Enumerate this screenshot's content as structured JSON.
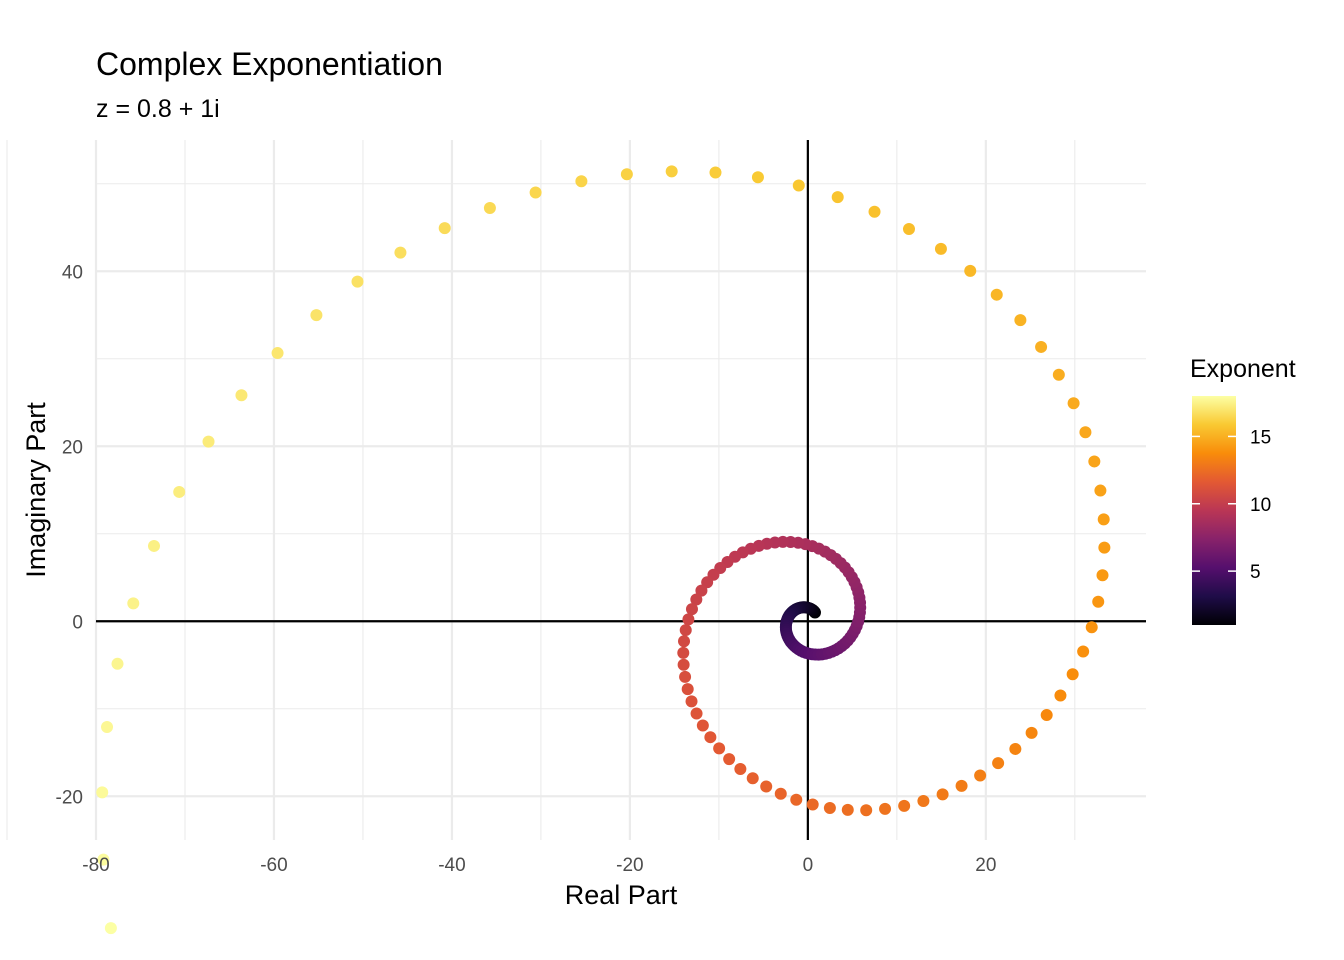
{
  "chart_data": {
    "type": "scatter",
    "title": "Complex Exponentiation",
    "subtitle": "z = 0.8 + 1i",
    "xlabel": "Real Part",
    "ylabel": "Imaginary Part",
    "xlim": [
      -80,
      38
    ],
    "ylim": [
      -25,
      55
    ],
    "x_ticks": [
      -80,
      -60,
      -40,
      -20,
      0,
      20
    ],
    "x_tick_labels": [
      "-80",
      "-60",
      "-40",
      "-20",
      "0",
      "20"
    ],
    "y_ticks": [
      -20,
      0,
      20,
      40
    ],
    "y_tick_labels": [
      "-20",
      "0",
      "20",
      "40"
    ],
    "grid": true,
    "reference_lines": {
      "x": 0,
      "y": 0
    },
    "legend": {
      "title": "Exponent",
      "placement": "right",
      "range": [
        1,
        18
      ],
      "ticks": [
        5,
        10,
        15
      ],
      "tick_labels": [
        "5",
        "10",
        "15"
      ],
      "colormap": "inferno"
    },
    "series": {
      "base_real": 0.8,
      "base_imag": 1,
      "exponent_from": 1,
      "exponent_to": 18,
      "exponent_step": 0.1
    },
    "colors": {
      "axis_line": "#000000",
      "grid": "#ebebeb",
      "tick_text": "#4d4d4d"
    }
  }
}
